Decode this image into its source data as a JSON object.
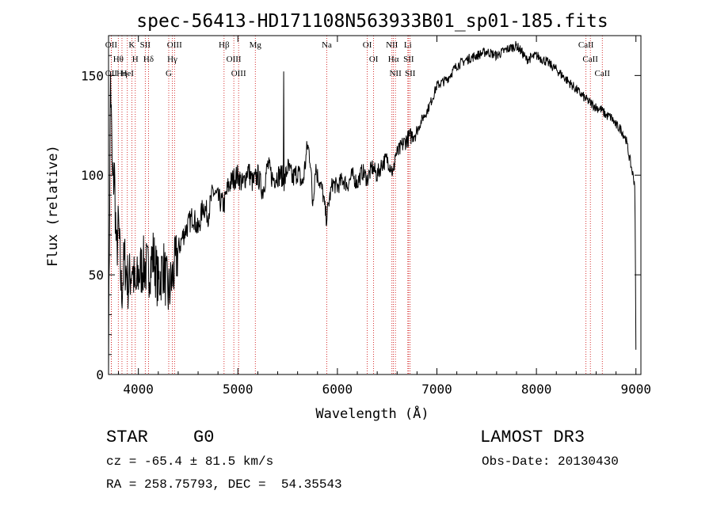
{
  "chart_data": {
    "type": "line",
    "title": "spec-56413-HD171108N563933B01_sp01-185.fits",
    "xlabel": "Wavelength (Å)",
    "ylabel": "Flux (relative)",
    "xlim": [
      3700,
      9050
    ],
    "ylim": [
      0,
      170
    ],
    "xticks": [
      4000,
      5000,
      6000,
      7000,
      8000,
      9000
    ],
    "yticks": [
      0,
      50,
      100,
      150
    ],
    "grid": false,
    "series": [
      {
        "name": "spectrum",
        "x": [
          3700,
          3720,
          3740,
          3760,
          3780,
          3800,
          3830,
          3860,
          3900,
          3940,
          3970,
          4000,
          4050,
          4100,
          4150,
          4200,
          4250,
          4300,
          4340,
          4400,
          4450,
          4500,
          4550,
          4600,
          4650,
          4700,
          4750,
          4800,
          4860,
          4900,
          4950,
          5000,
          5050,
          5100,
          5150,
          5200,
          5250,
          5300,
          5350,
          5400,
          5440,
          5460,
          5500,
          5550,
          5600,
          5650,
          5700,
          5730,
          5750,
          5780,
          5800,
          5850,
          5890,
          5920,
          5950,
          6000,
          6050,
          6100,
          6150,
          6200,
          6250,
          6300,
          6350,
          6400,
          6450,
          6500,
          6540,
          6563,
          6580,
          6620,
          6650,
          6700,
          6750,
          6800,
          6850,
          6900,
          6950,
          7000,
          7100,
          7200,
          7300,
          7400,
          7500,
          7600,
          7700,
          7800,
          7850,
          7900,
          8000,
          8100,
          8200,
          8300,
          8400,
          8500,
          8550,
          8600,
          8650,
          8700,
          8750,
          8800,
          8850,
          8900,
          8930,
          8950,
          8970,
          8990,
          9000
        ],
        "values": [
          5,
          150,
          95,
          100,
          60,
          75,
          40,
          58,
          45,
          55,
          40,
          50,
          55,
          52,
          60,
          45,
          55,
          40,
          48,
          62,
          70,
          75,
          80,
          72,
          85,
          80,
          92,
          88,
          85,
          94,
          98,
          100,
          95,
          103,
          96,
          100,
          92,
          105,
          98,
          100,
          100,
          95,
          104,
          98,
          102,
          95,
          115,
          108,
          85,
          105,
          100,
          92,
          78,
          88,
          96,
          94,
          98,
          95,
          100,
          96,
          102,
          98,
          104,
          100,
          106,
          108,
          104,
          100,
          110,
          112,
          115,
          118,
          120,
          122,
          128,
          132,
          138,
          145,
          148,
          155,
          158,
          160,
          162,
          160,
          163,
          165,
          162,
          158,
          160,
          157,
          153,
          148,
          143,
          138,
          136,
          134,
          133,
          130,
          129,
          125,
          123,
          118,
          110,
          105,
          100,
          95,
          12
        ]
      }
    ],
    "spectral_lines": [
      {
        "name": "OII",
        "wavelength": 3727
      },
      {
        "name": "Hθ",
        "wavelength": 3798
      },
      {
        "name": "OII",
        "wavelength": 3727
      },
      {
        "name": "Hη",
        "wavelength": 3835
      },
      {
        "name": "HeI",
        "wavelength": 3889
      },
      {
        "name": "K",
        "wavelength": 3934
      },
      {
        "name": "H",
        "wavelength": 3969
      },
      {
        "name": "SII",
        "wavelength": 4069
      },
      {
        "name": "Hδ",
        "wavelength": 4102
      },
      {
        "name": "OIII",
        "wavelength": 4363
      },
      {
        "name": "Hγ",
        "wavelength": 4341
      },
      {
        "name": "G",
        "wavelength": 4305
      },
      {
        "name": "Hβ",
        "wavelength": 4861
      },
      {
        "name": "OIII",
        "wavelength": 4959
      },
      {
        "name": "OIII",
        "wavelength": 5007
      },
      {
        "name": "Mg",
        "wavelength": 5175
      },
      {
        "name": "Na",
        "wavelength": 5893
      },
      {
        "name": "OI",
        "wavelength": 6300
      },
      {
        "name": "OI",
        "wavelength": 6364
      },
      {
        "name": "NII",
        "wavelength": 6548
      },
      {
        "name": "Hα",
        "wavelength": 6563
      },
      {
        "name": "NII",
        "wavelength": 6583
      },
      {
        "name": "SII",
        "wavelength": 6716
      },
      {
        "name": "Li",
        "wavelength": 6708
      },
      {
        "name": "SII",
        "wavelength": 6731
      },
      {
        "name": "CaII",
        "wavelength": 8498
      },
      {
        "name": "CaII",
        "wavelength": 8542
      },
      {
        "name": "CaII",
        "wavelength": 8662
      }
    ],
    "spike": {
      "wavelength": 5460,
      "value": 152
    }
  },
  "info": {
    "object_class": "STAR",
    "subclass": "G0",
    "survey": "LAMOST DR3",
    "redshift": "cz = -65.4 ± 81.5 km/s",
    "obs_date": "Obs-Date: 20130430",
    "coords": "RA = 258.75793, DEC =  54.35543"
  },
  "colors": {
    "line": "#000000",
    "marker": "#cc0000",
    "axes": "#000000",
    "background": "#ffffff"
  }
}
